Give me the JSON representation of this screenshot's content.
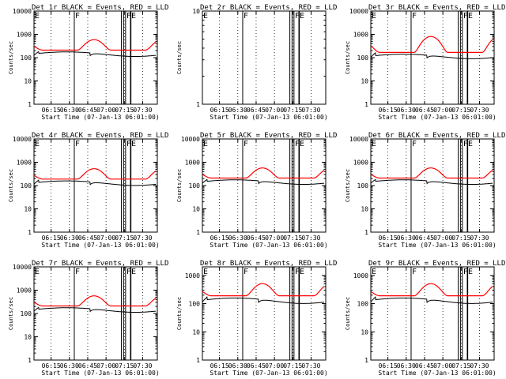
{
  "figure_title": "",
  "colors": {
    "events": "#000000",
    "lld": "#ff0000",
    "axes": "#000000",
    "background": "#ffffff"
  },
  "chart_data": [
    {
      "type": "line",
      "title": "Det 1r BLACK = Events, RED = LLD",
      "xlabel": "Start Time (07-Jan-13 06:01:00)",
      "ylabel": "Counts/sec",
      "yscale": "log",
      "ylim": [
        1,
        10000
      ],
      "xlim": [
        6.0167,
        7.7
      ],
      "y_ticks": [
        "1",
        "10",
        "100",
        "1000",
        "10000"
      ],
      "x_ticks": [
        "06:15",
        "06:30",
        "06:45",
        "07:00",
        "07:15",
        "07:30"
      ],
      "has_data": true,
      "base_level": 200,
      "lld_peak": 580,
      "markers": [
        {
          "label": "E",
          "t": 6.0167
        },
        {
          "label": "F",
          "t": 6.5667
        },
        {
          "label": "F",
          "t": 7.2667
        },
        {
          "label": "E",
          "t": 7.3333
        }
      ],
      "saa_lines": [
        7.21,
        7.24,
        7.34
      ]
    },
    {
      "type": "line",
      "title": "Det 2r BLACK = Events, RED = LLD",
      "xlabel": "Start Time (07-Jan-13 06:01:00)",
      "ylabel": "Counts/sec",
      "yscale": "log",
      "ylim": [
        1,
        10
      ],
      "xlim": [
        6.0167,
        7.7
      ],
      "y_ticks": [
        "1",
        "10"
      ],
      "x_ticks": [
        "06:15",
        "06:30",
        "06:45",
        "07:00",
        "07:15",
        "07:30"
      ],
      "has_data": false,
      "base_level": 0,
      "lld_peak": 0,
      "markers": [
        {
          "label": "E",
          "t": 6.0167
        },
        {
          "label": "F",
          "t": 6.5667
        },
        {
          "label": "F",
          "t": 7.2667
        },
        {
          "label": "E",
          "t": 7.3333
        }
      ],
      "saa_lines": [
        7.21,
        7.24,
        7.34
      ]
    },
    {
      "type": "line",
      "title": "Det 3r BLACK = Events, RED = LLD",
      "xlabel": "Start Time (07-Jan-13 06:01:00)",
      "ylabel": "Counts/sec",
      "yscale": "log",
      "ylim": [
        1,
        10000
      ],
      "xlim": [
        6.0167,
        7.7
      ],
      "y_ticks": [
        "1",
        "10",
        "100",
        "1000",
        "10000"
      ],
      "x_ticks": [
        "06:15",
        "06:30",
        "06:45",
        "07:00",
        "07:15",
        "07:30"
      ],
      "has_data": true,
      "base_level": 160,
      "lld_peak": 800,
      "markers": [
        {
          "label": "E",
          "t": 6.0167
        },
        {
          "label": "F",
          "t": 6.5667
        },
        {
          "label": "F",
          "t": 7.2667
        },
        {
          "label": "E",
          "t": 7.3333
        }
      ],
      "saa_lines": [
        7.21,
        7.24,
        7.34
      ]
    },
    {
      "type": "line",
      "title": "Det 4r BLACK = Events, RED = LLD",
      "xlabel": "Start Time (07-Jan-13 06:01:00)",
      "ylabel": "Counts/sec",
      "yscale": "log",
      "ylim": [
        1,
        10000
      ],
      "xlim": [
        6.0167,
        7.7
      ],
      "y_ticks": [
        "1",
        "10",
        "100",
        "1000",
        "10000"
      ],
      "x_ticks": [
        "06:15",
        "06:30",
        "06:45",
        "07:00",
        "07:15",
        "07:30"
      ],
      "has_data": true,
      "base_level": 180,
      "lld_peak": 520,
      "markers": [
        {
          "label": "E",
          "t": 6.0167
        },
        {
          "label": "F",
          "t": 6.5667
        },
        {
          "label": "F",
          "t": 7.2667
        },
        {
          "label": "E",
          "t": 7.3333
        }
      ],
      "saa_lines": [
        7.21,
        7.24,
        7.34
      ]
    },
    {
      "type": "line",
      "title": "Det 5r BLACK = Events, RED = LLD",
      "xlabel": "Start Time (07-Jan-13 06:01:00)",
      "ylabel": "Counts/sec",
      "yscale": "log",
      "ylim": [
        1,
        10000
      ],
      "xlim": [
        6.0167,
        7.7
      ],
      "y_ticks": [
        "1",
        "10",
        "100",
        "1000",
        "10000"
      ],
      "x_ticks": [
        "06:15",
        "06:30",
        "06:45",
        "07:00",
        "07:15",
        "07:30"
      ],
      "has_data": true,
      "base_level": 200,
      "lld_peak": 560,
      "markers": [
        {
          "label": "E",
          "t": 6.0167
        },
        {
          "label": "F",
          "t": 6.5667
        },
        {
          "label": "F",
          "t": 7.2667
        },
        {
          "label": "E",
          "t": 7.3333
        }
      ],
      "saa_lines": [
        7.21,
        7.24,
        7.34
      ]
    },
    {
      "type": "line",
      "title": "Det 6r BLACK = Events, RED = LLD",
      "xlabel": "Start Time (07-Jan-13 06:01:00)",
      "ylabel": "Counts/sec",
      "yscale": "log",
      "ylim": [
        1,
        10000
      ],
      "xlim": [
        6.0167,
        7.7
      ],
      "y_ticks": [
        "1",
        "10",
        "100",
        "1000",
        "10000"
      ],
      "x_ticks": [
        "06:15",
        "06:30",
        "06:45",
        "07:00",
        "07:15",
        "07:30"
      ],
      "has_data": true,
      "base_level": 200,
      "lld_peak": 560,
      "markers": [
        {
          "label": "E",
          "t": 6.0167
        },
        {
          "label": "F",
          "t": 6.5667
        },
        {
          "label": "F",
          "t": 7.2667
        },
        {
          "label": "E",
          "t": 7.3333
        }
      ],
      "saa_lines": [
        7.21,
        7.24,
        7.34
      ]
    },
    {
      "type": "line",
      "title": "Det 7r BLACK = Events, RED = LLD",
      "xlabel": "Start Time (07-Jan-13 06:01:00)",
      "ylabel": "Counts/sec",
      "yscale": "log",
      "ylim": [
        1,
        10000
      ],
      "xlim": [
        6.0167,
        7.7
      ],
      "y_ticks": [
        "1",
        "10",
        "100",
        "1000",
        "10000"
      ],
      "x_ticks": [
        "06:15",
        "06:30",
        "06:45",
        "07:00",
        "07:15",
        "07:30"
      ],
      "has_data": true,
      "base_level": 200,
      "lld_peak": 560,
      "markers": [
        {
          "label": "E",
          "t": 6.0167
        },
        {
          "label": "F",
          "t": 6.5667
        },
        {
          "label": "F",
          "t": 7.2667
        },
        {
          "label": "E",
          "t": 7.3333
        }
      ],
      "saa_lines": [
        7.21,
        7.24,
        7.34
      ]
    },
    {
      "type": "line",
      "title": "Det 8r BLACK = Events, RED = LLD",
      "xlabel": "Start Time (07-Jan-13 06:01:00)",
      "ylabel": "Counts/sec",
      "yscale": "log",
      "ylim": [
        1,
        2000
      ],
      "xlim": [
        6.0167,
        7.7
      ],
      "y_ticks": [
        "1",
        "10",
        "100",
        "1000"
      ],
      "x_ticks": [
        "06:15",
        "06:30",
        "06:45",
        "07:00",
        "07:15",
        "07:30"
      ],
      "has_data": true,
      "base_level": 180,
      "lld_peak": 500,
      "markers": [
        {
          "label": "E",
          "t": 6.0167
        },
        {
          "label": "F",
          "t": 6.5667
        },
        {
          "label": "F",
          "t": 7.2667
        },
        {
          "label": "E",
          "t": 7.3333
        }
      ],
      "saa_lines": [
        7.21,
        7.24,
        7.34
      ]
    },
    {
      "type": "line",
      "title": "Det 9r BLACK = Events, RED = LLD",
      "xlabel": "Start Time (07-Jan-13 06:01:00)",
      "ylabel": "Counts/sec",
      "yscale": "log",
      "ylim": [
        1,
        2000
      ],
      "xlim": [
        6.0167,
        7.7
      ],
      "y_ticks": [
        "1",
        "10",
        "100",
        "1000"
      ],
      "x_ticks": [
        "06:15",
        "06:30",
        "06:45",
        "07:00",
        "07:15",
        "07:30"
      ],
      "has_data": true,
      "base_level": 180,
      "lld_peak": 500,
      "markers": [
        {
          "label": "E",
          "t": 6.0167
        },
        {
          "label": "F",
          "t": 6.5667
        },
        {
          "label": "F",
          "t": 7.2667
        },
        {
          "label": "E",
          "t": 7.3333
        }
      ],
      "saa_lines": [
        7.21,
        7.24,
        7.34
      ]
    }
  ]
}
